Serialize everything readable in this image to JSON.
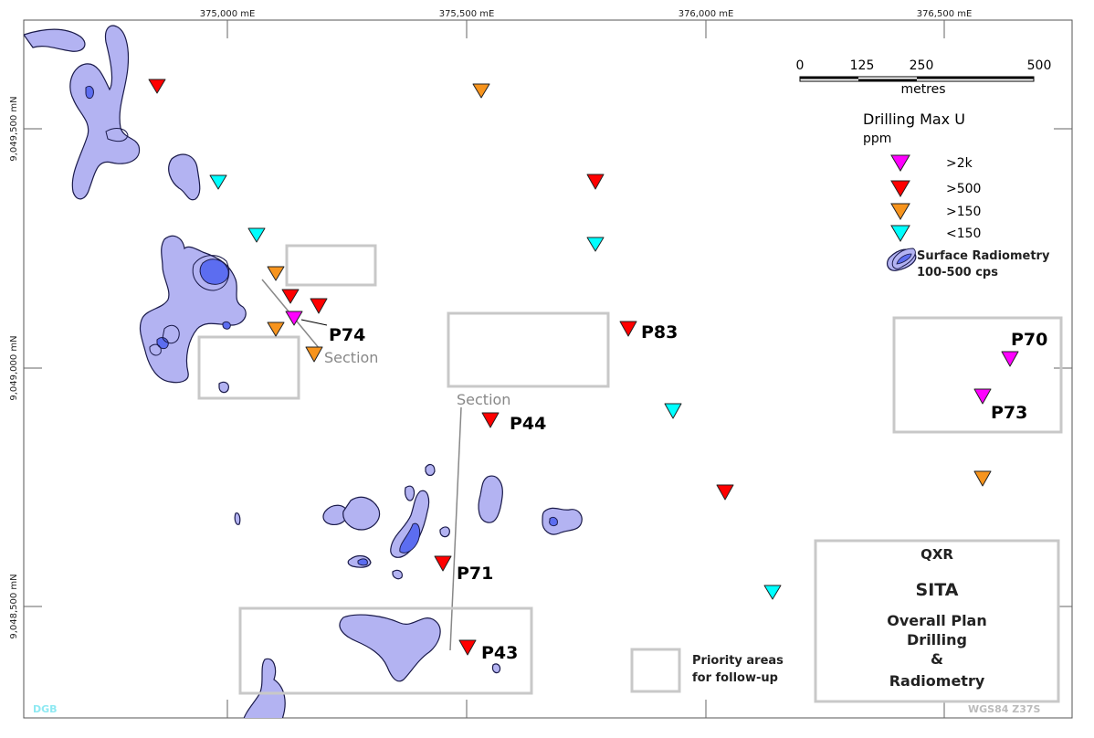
{
  "map": {
    "grid": {
      "easting_labels": [
        "375,000 mE",
        "375,500 mE",
        "376,000 mE",
        "376,500 mE"
      ],
      "northing_labels": [
        "9,049,500 mN",
        "9,049,000 mN",
        "9,048,500 mN"
      ]
    },
    "scale_bar": {
      "ticks": [
        "0",
        "125",
        "250",
        "500"
      ],
      "unit": "metres"
    },
    "legend": {
      "title": "Drilling Max U",
      "unit": "ppm",
      "items": [
        {
          "label": ">2k",
          "color": "#ff00ff"
        },
        {
          "label": ">500",
          "color": "#ff0000"
        },
        {
          "label": ">150",
          "color": "#f7941d"
        },
        {
          "label": "<150",
          "color": "#00ffff"
        }
      ],
      "radiometry_line1": "Surface Radiometry",
      "radiometry_line2": "100-500 cps"
    },
    "hole_labels": {
      "p74": "P74",
      "p83": "P83",
      "p70": "P70",
      "p73": "P73",
      "p44": "P44",
      "p71": "P71",
      "p43": "P43"
    },
    "section_label": "Section",
    "priority_legend": {
      "line1": "Priority areas",
      "line2": "for follow-up"
    },
    "title_block": {
      "company": "QXR",
      "project": "SITA",
      "line1": "Overall Plan",
      "line2": "Drilling",
      "line3": "&",
      "line4": "Radiometry"
    },
    "author_tag": "DGB",
    "datum": "WGS84 Z37S",
    "colors": {
      "radiometry_fill": "#b3b3f2",
      "radiometry_high": "#5c6df0",
      "priority_box": "#c8c8c8"
    }
  }
}
